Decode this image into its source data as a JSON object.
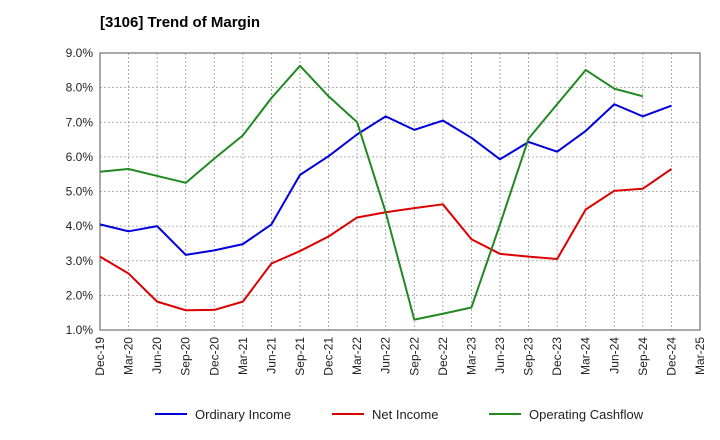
{
  "chart_data": {
    "type": "line",
    "title": "[3106]  Trend of Margin",
    "x": [
      "Dec-19",
      "Mar-20",
      "Jun-20",
      "Sep-20",
      "Dec-20",
      "Mar-21",
      "Jun-21",
      "Sep-21",
      "Dec-21",
      "Mar-22",
      "Jun-22",
      "Sep-22",
      "Dec-22",
      "Mar-23",
      "Jun-23",
      "Sep-23",
      "Dec-23",
      "Mar-24",
      "Jun-24",
      "Sep-24",
      "Dec-24",
      "Mar-25"
    ],
    "ylim": [
      1.0,
      9.0
    ],
    "y_ticks": [
      "1.0%",
      "2.0%",
      "3.0%",
      "4.0%",
      "5.0%",
      "6.0%",
      "7.0%",
      "8.0%",
      "9.0%"
    ],
    "grid": true,
    "legend_position": "bottom",
    "series": [
      {
        "name": "Ordinary Income",
        "color": "#0000dd",
        "values": [
          4.05,
          3.85,
          4.0,
          3.17,
          3.3,
          3.48,
          4.05,
          5.48,
          6.02,
          6.65,
          7.17,
          6.78,
          7.05,
          6.55,
          5.93,
          6.43,
          6.15,
          6.75,
          7.52,
          7.17,
          7.48,
          null
        ]
      },
      {
        "name": "Net Income",
        "color": "#dd0000",
        "values": [
          3.12,
          2.63,
          1.82,
          1.57,
          1.58,
          1.82,
          2.92,
          3.28,
          3.7,
          4.25,
          4.4,
          4.52,
          4.63,
          3.62,
          3.2,
          3.12,
          3.05,
          4.48,
          5.02,
          5.08,
          5.65,
          null
        ]
      },
      {
        "name": "Operating Cashflow",
        "color": "#228822",
        "values": [
          5.57,
          5.65,
          5.45,
          5.25,
          5.95,
          6.62,
          7.7,
          8.63,
          7.75,
          7.0,
          4.4,
          1.3,
          1.47,
          1.65,
          4.05,
          6.53,
          7.52,
          8.51,
          7.97,
          7.75,
          null,
          null
        ]
      }
    ]
  }
}
